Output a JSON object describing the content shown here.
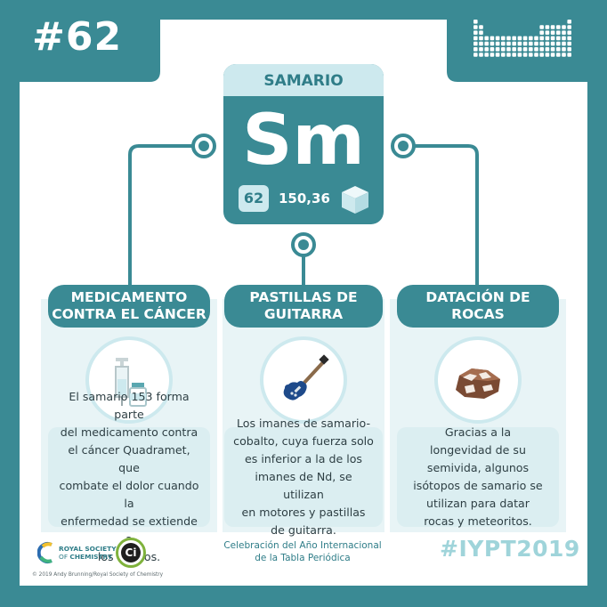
{
  "header": {
    "number_label": "#62"
  },
  "element": {
    "name": "SAMARIO",
    "symbol": "Sm",
    "atomic_number": "62",
    "atomic_mass": "150,36"
  },
  "columns": [
    {
      "category_lines": [
        "MEDICAMENTO",
        "CONTRA EL CÁNCER"
      ],
      "icon": "syringe-and-vial-icon",
      "description_lines": [
        "El samario 153 forma parte",
        "del medicamento contra",
        "el cáncer Quadramet, que",
        "combate el dolor cuando la",
        "enfermedad se extiende a",
        "los huesos."
      ]
    },
    {
      "category_lines": [
        "PASTILLAS DE",
        "GUITARRA"
      ],
      "icon": "electric-guitar-icon",
      "description_lines": [
        "Los imanes de samario-",
        "cobalto, cuya fuerza solo",
        "es inferior a la de los",
        "imanes de Nd, se utilizan",
        "en motores y pastillas",
        "de guitarra."
      ]
    },
    {
      "category_lines": [
        "DATACIÓN DE ROCAS"
      ],
      "icon": "rock-icon",
      "description_lines": [
        "Gracias a la",
        "longevidad de su",
        "semivida, algunos",
        "isótopos de samario se",
        "utilizan para datar",
        "rocas y meteoritos."
      ]
    }
  ],
  "footer": {
    "rsc_line1": "ROYAL SOCIETY",
    "rsc_line2_prefix": "OF ",
    "rsc_line2_bold": "CHEMISTRY",
    "ci_logo_text": "Ci",
    "center_line1": "Celebración del Año Internacional",
    "center_line2": "de la Tabla Periódica",
    "hashtag": "#IYPT2019",
    "copyright": "© 2019 Andy Brunning/Royal Society of Chemistry"
  },
  "colors": {
    "teal": "#3a8a94",
    "light_teal": "#cde9ee",
    "pale_bg": "#e8f4f6",
    "desc_bg": "#dbeef1",
    "guitar_blue": "#1e4a8a",
    "rock_brown": "#7a4a33"
  }
}
